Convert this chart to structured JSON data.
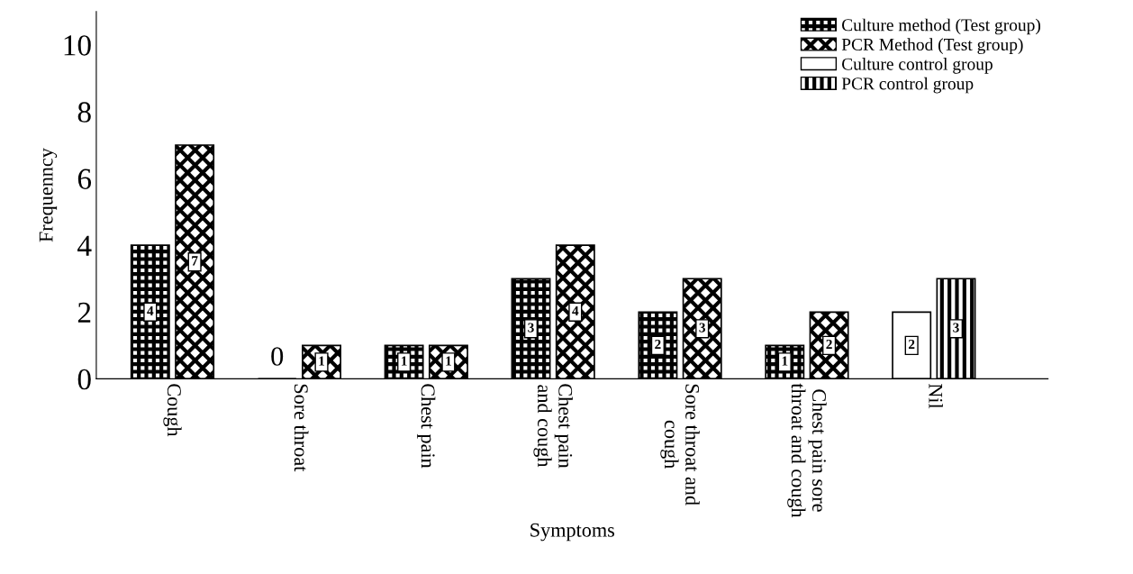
{
  "chart_data": {
    "type": "bar",
    "xlabel": "Symptoms",
    "ylabel": "Frequenncy",
    "categories": [
      "Cough",
      "Sore throat",
      "Chest pain",
      "Chest pain\nand cough",
      "Sore throat and\ncough",
      "Chest pain sore\nthroat and cough",
      "Nil"
    ],
    "series": [
      {
        "name": "Culture method (Test group)",
        "color": "#000000",
        "values": [
          4,
          0,
          1,
          3,
          2,
          1,
          null
        ],
        "value_labels": [
          "4",
          "0",
          "1",
          "3",
          "2",
          "1",
          null
        ]
      },
      {
        "name": "PCR Method (Test group)",
        "color": "#000000",
        "values": [
          7,
          1,
          1,
          4,
          3,
          2,
          null
        ],
        "value_labels": [
          "7",
          "1",
          "1",
          "4",
          "3",
          "2",
          null
        ]
      },
      {
        "name": "Culture control group",
        "color": "#ffffff",
        "values": [
          null,
          null,
          null,
          null,
          null,
          null,
          2
        ],
        "value_labels": [
          null,
          null,
          null,
          null,
          null,
          null,
          "2"
        ]
      },
      {
        "name": "PCR control group",
        "color": "#000000",
        "values": [
          null,
          null,
          null,
          null,
          null,
          null,
          3
        ],
        "value_labels": [
          null,
          null,
          null,
          null,
          null,
          null,
          "3"
        ]
      }
    ],
    "ylim": [
      0,
      11
    ],
    "yticks": [
      0,
      2,
      4,
      6,
      8,
      10
    ],
    "grid": false,
    "legend": "top right"
  }
}
